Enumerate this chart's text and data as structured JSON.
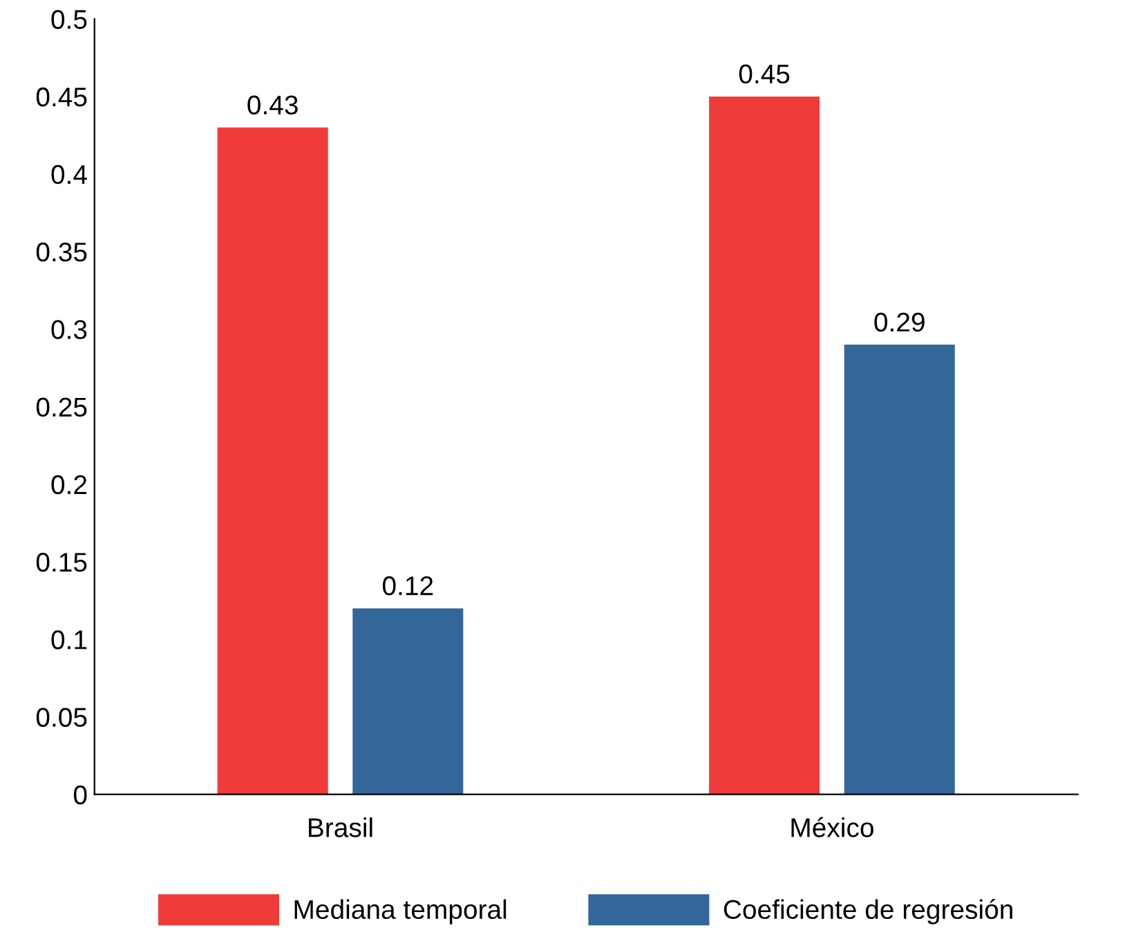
{
  "chart_data": {
    "type": "bar",
    "categories": [
      "Brasil",
      "México"
    ],
    "series": [
      {
        "name": "Mediana temporal",
        "color": "#ef3b39",
        "values": [
          0.43,
          0.45
        ]
      },
      {
        "name": "Coeficiente de regresión",
        "color": "#336699",
        "values": [
          0.12,
          0.29
        ]
      }
    ],
    "ylim": [
      0,
      0.5
    ],
    "yticks": [
      0,
      0.05,
      0.1,
      0.15,
      0.2,
      0.25,
      0.3,
      0.35,
      0.4,
      0.45,
      0.5
    ],
    "data_labels": true,
    "grid": false,
    "legend": "bottom"
  }
}
